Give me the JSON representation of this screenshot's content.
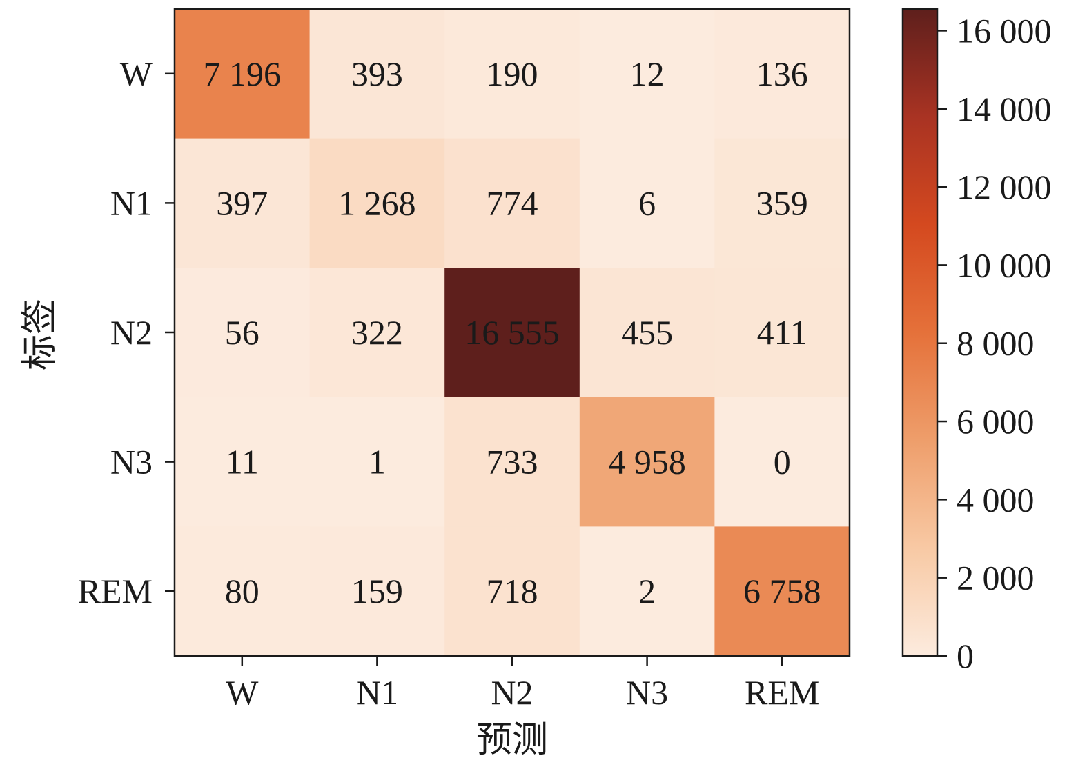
{
  "chart_data": {
    "type": "heatmap",
    "title": "",
    "xlabel": "预测",
    "ylabel": "标签",
    "x_categories": [
      "W",
      "N1",
      "N2",
      "N3",
      "REM"
    ],
    "y_categories": [
      "W",
      "N1",
      "N2",
      "N3",
      "REM"
    ],
    "values": [
      [
        7196,
        393,
        190,
        12,
        136
      ],
      [
        397,
        1268,
        774,
        6,
        359
      ],
      [
        56,
        322,
        16555,
        455,
        411
      ],
      [
        11,
        1,
        733,
        4958,
        0
      ],
      [
        80,
        159,
        718,
        2,
        6758
      ]
    ],
    "value_labels": [
      [
        "7 196",
        "393",
        "190",
        "12",
        "136"
      ],
      [
        "397",
        "1 268",
        "774",
        "6",
        "359"
      ],
      [
        "56",
        "322",
        "16 555",
        "455",
        "411"
      ],
      [
        "11",
        "1",
        "733",
        "4 958",
        "0"
      ],
      [
        "80",
        "159",
        "718",
        "2",
        "6 758"
      ]
    ],
    "colorbar": {
      "vmin": 0,
      "vmax": 16555,
      "ticks": [
        0,
        2000,
        4000,
        6000,
        8000,
        10000,
        12000,
        14000,
        16000
      ],
      "tick_labels": [
        "0",
        "2 000",
        "4 000",
        "6 000",
        "8 000",
        "10 000",
        "12 000",
        "14 000",
        "16 000"
      ],
      "colormap": [
        "#fcebde",
        "#f8c9a4",
        "#ee9e6b",
        "#e5713a",
        "#d4491f",
        "#a93323",
        "#5e1f1c"
      ]
    },
    "grid": false,
    "legend": "colorbar-right"
  }
}
